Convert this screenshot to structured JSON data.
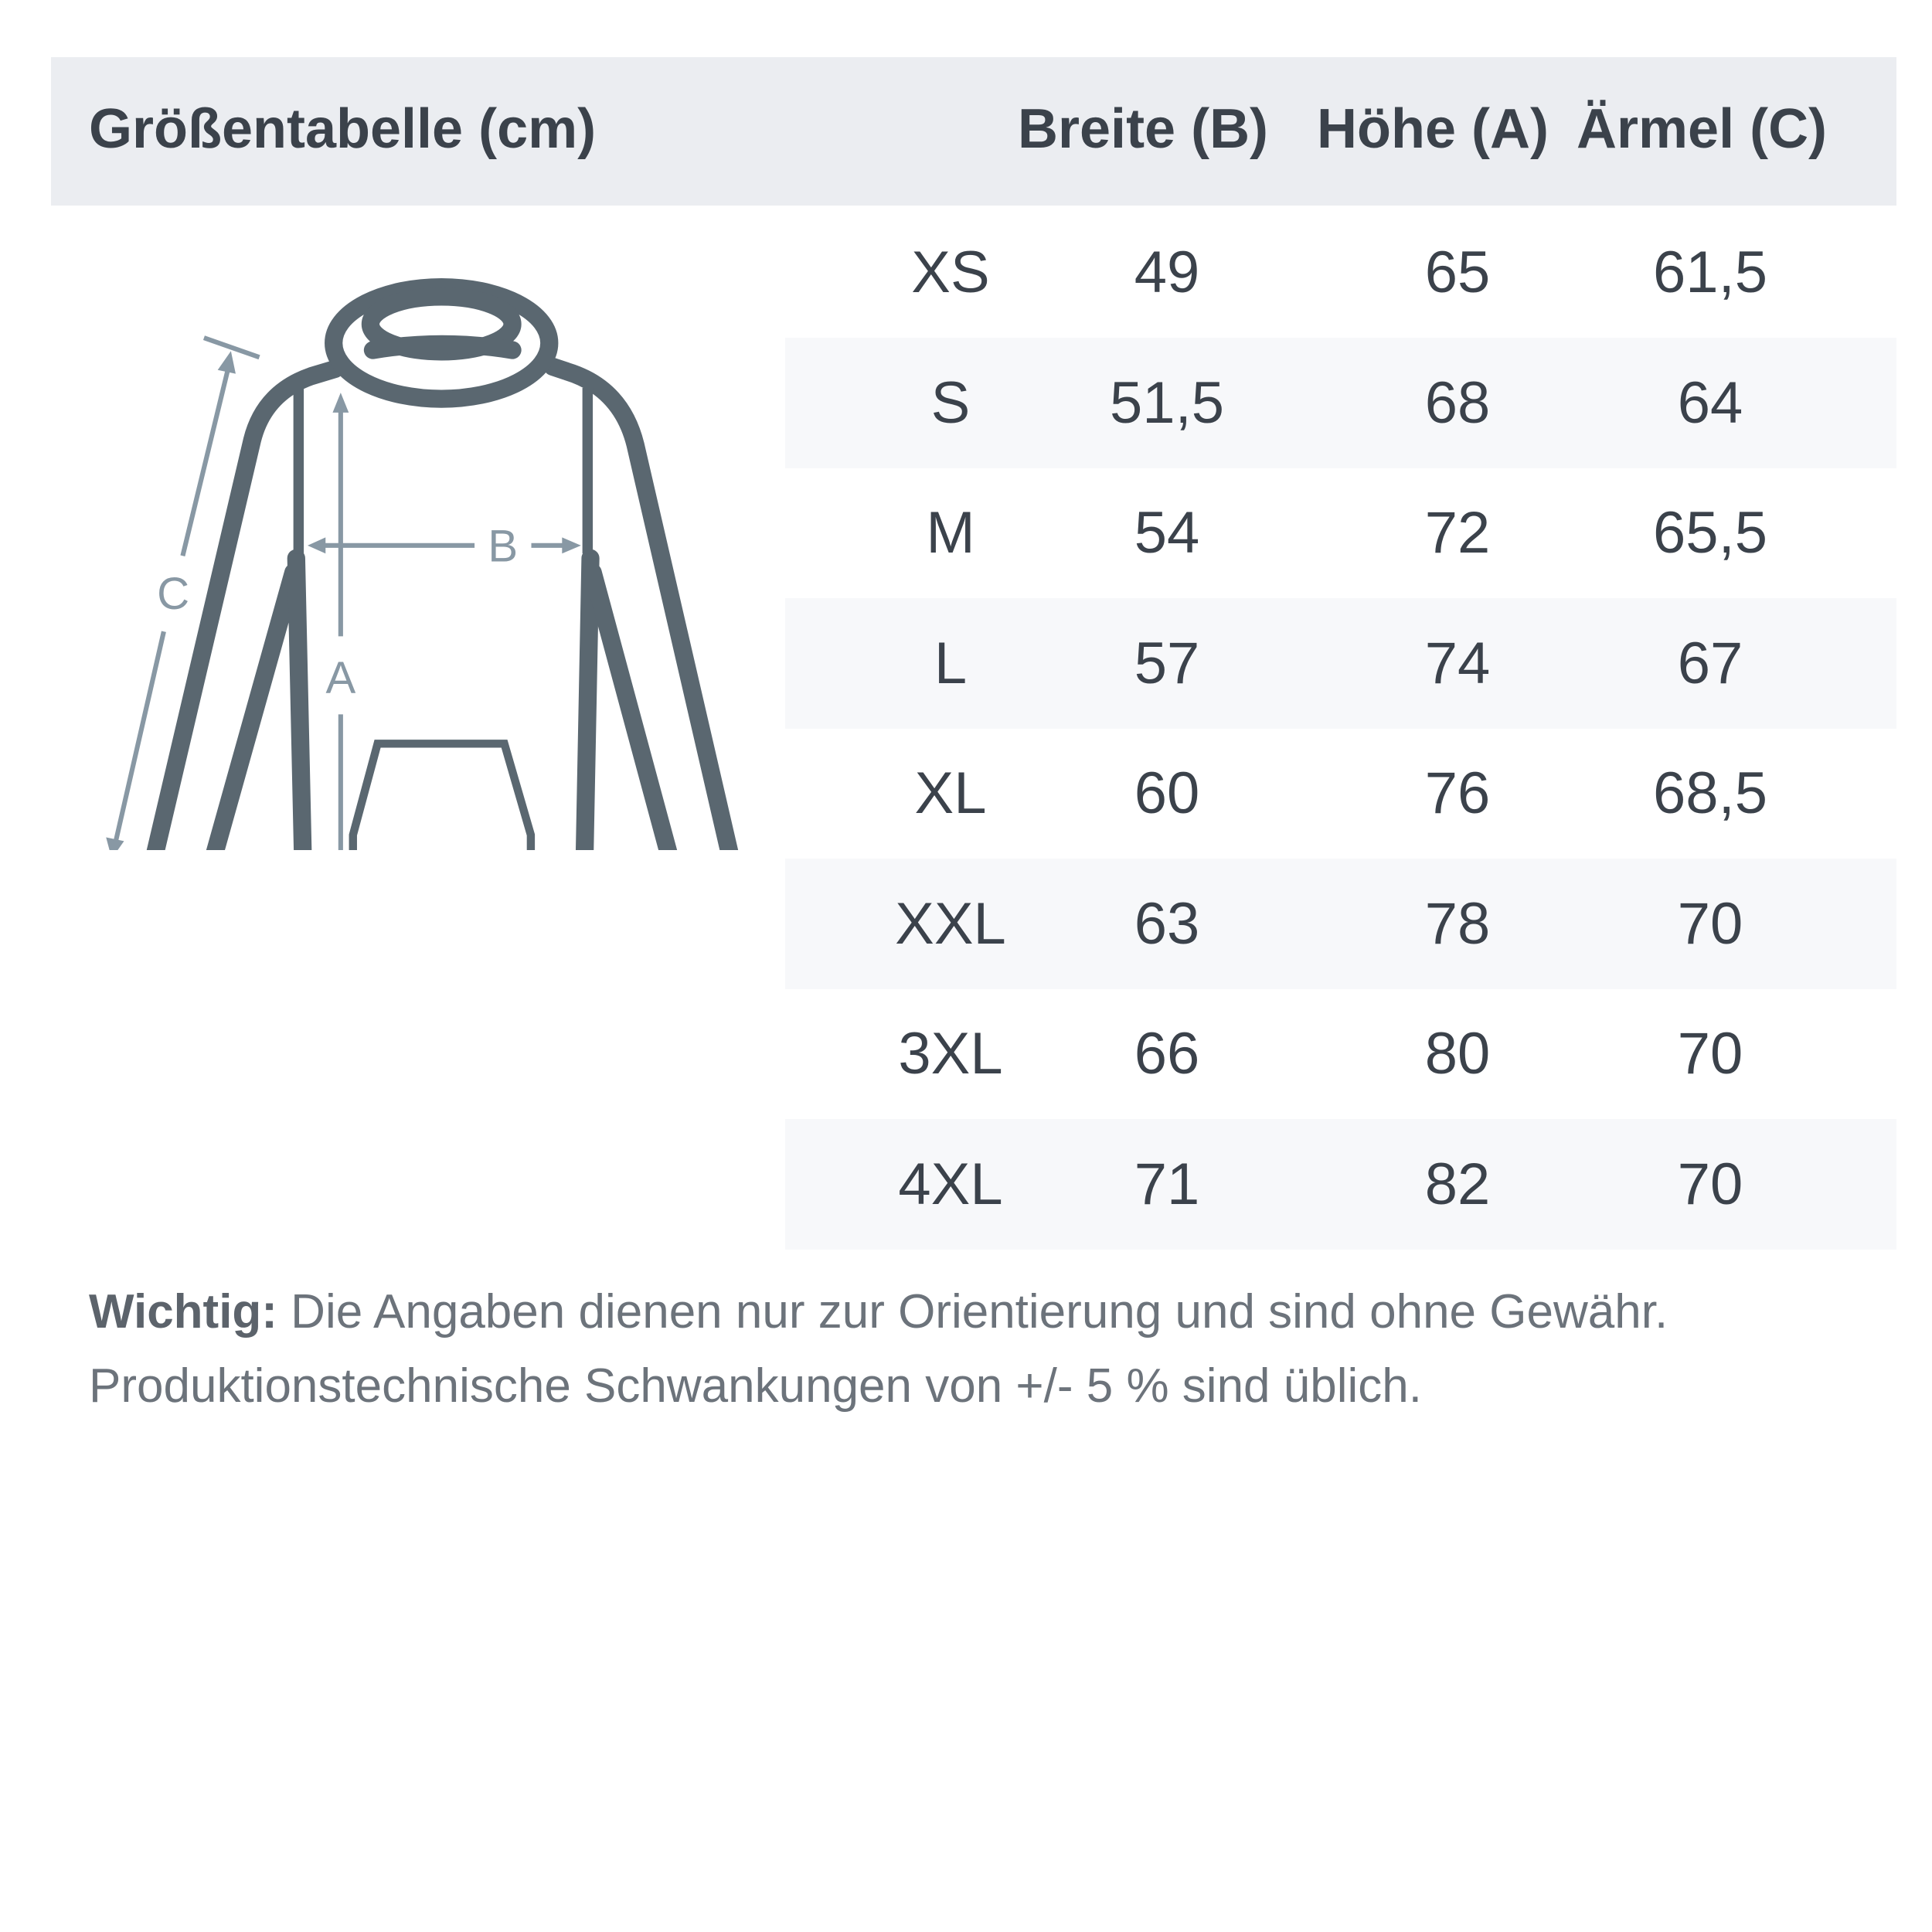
{
  "header": {
    "title": "Größentabelle (cm)",
    "columns": [
      "Breite (B)",
      "Höhe (A)",
      "Ärmel (C)"
    ]
  },
  "diagram": {
    "labels": {
      "a": "A",
      "b": "B",
      "c": "C"
    },
    "outline_color": "#5a6770",
    "measure_color": "#8898a4"
  },
  "rows": [
    {
      "size": "XS",
      "breite": "49",
      "hoehe": "65",
      "aermel": "61,5"
    },
    {
      "size": "S",
      "breite": "51,5",
      "hoehe": "68",
      "aermel": "64"
    },
    {
      "size": "M",
      "breite": "54",
      "hoehe": "72",
      "aermel": "65,5"
    },
    {
      "size": "L",
      "breite": "57",
      "hoehe": "74",
      "aermel": "67"
    },
    {
      "size": "XL",
      "breite": "60",
      "hoehe": "76",
      "aermel": "68,5"
    },
    {
      "size": "XXL",
      "breite": "63",
      "hoehe": "78",
      "aermel": "70"
    },
    {
      "size": "3XL",
      "breite": "66",
      "hoehe": "80",
      "aermel": "70"
    },
    {
      "size": "4XL",
      "breite": "71",
      "hoehe": "82",
      "aermel": "70"
    }
  ],
  "note": {
    "label": "Wichtig:",
    "line1": " Die Angaben dienen nur zur Orientierung und sind ohne Gewähr.",
    "line2": "Produktionstechnische Schwankungen von +/- 5 % sind üblich."
  }
}
